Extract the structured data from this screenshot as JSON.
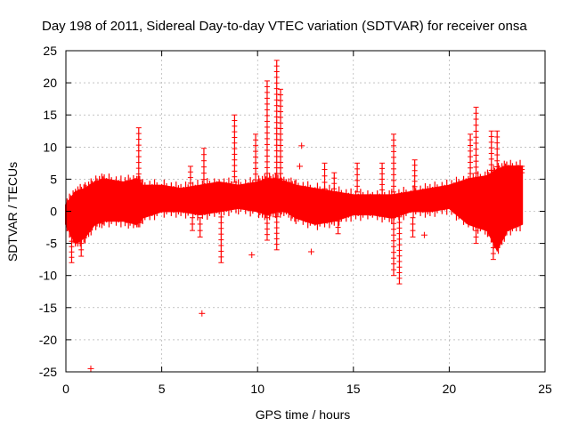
{
  "chart_data": {
    "type": "scatter",
    "title": "Day 198 of 2011, Sidereal Day-to-day VTEC variation (SDTVAR) for receiver onsa",
    "xlabel": "GPS time / hours",
    "ylabel": "SDTVAR / TECUs",
    "xlim": [
      0,
      25
    ],
    "ylim": [
      -25,
      25
    ],
    "x_ticks": [
      0,
      5,
      10,
      15,
      20,
      25
    ],
    "y_ticks": [
      -25,
      -20,
      -15,
      -10,
      -5,
      0,
      5,
      10,
      15,
      20,
      25
    ],
    "grid": true,
    "marker": "+",
    "color": "#ff0000",
    "series": [
      {
        "name": "SDTVAR",
        "band": {
          "x": [
            0.0,
            0.5,
            1.0,
            1.5,
            2.0,
            3.0,
            3.7,
            4.0,
            5.0,
            6.0,
            7.0,
            8.0,
            9.0,
            10.0,
            10.5,
            11.0,
            11.5,
            12.0,
            13.0,
            14.0,
            15.0,
            16.0,
            17.0,
            18.0,
            19.0,
            20.0,
            21.0,
            22.0,
            22.5,
            23.0,
            23.8
          ],
          "upper": [
            1.0,
            3.0,
            3.5,
            4.5,
            5.0,
            4.5,
            5.0,
            4.0,
            4.0,
            3.5,
            4.0,
            4.5,
            4.0,
            4.5,
            5.0,
            5.0,
            4.5,
            4.0,
            3.5,
            3.0,
            2.5,
            2.5,
            2.5,
            3.0,
            3.5,
            4.0,
            5.0,
            5.5,
            6.5,
            7.0,
            7.0
          ],
          "lower": [
            -2.0,
            -5.0,
            -4.0,
            -2.0,
            -1.5,
            -1.5,
            -2.0,
            -1.0,
            0.0,
            0.0,
            -0.5,
            0.0,
            0.5,
            0.0,
            -0.5,
            0.0,
            0.0,
            -1.0,
            -2.0,
            -1.5,
            -0.5,
            -0.5,
            -1.0,
            0.0,
            0.0,
            0.5,
            -2.0,
            -3.0,
            -6.0,
            -3.0,
            -2.0
          ]
        },
        "spikes": [
          {
            "x": 0.3,
            "from": -3,
            "to": -8
          },
          {
            "x": 0.8,
            "from": -4,
            "to": -7
          },
          {
            "x": 3.8,
            "from": 4,
            "to": 13
          },
          {
            "x": 6.5,
            "from": 3.5,
            "to": 7
          },
          {
            "x": 6.6,
            "from": -1,
            "to": -3
          },
          {
            "x": 7.0,
            "from": -1,
            "to": -4
          },
          {
            "x": 7.2,
            "from": 4,
            "to": 9.8
          },
          {
            "x": 8.1,
            "from": 0,
            "to": -8
          },
          {
            "x": 8.8,
            "from": 4.5,
            "to": 15
          },
          {
            "x": 9.9,
            "from": 4,
            "to": 12
          },
          {
            "x": 10.5,
            "from": 5,
            "to": 20.3
          },
          {
            "x": 10.5,
            "from": -1,
            "to": -4.5
          },
          {
            "x": 11.0,
            "from": 5,
            "to": 23.5
          },
          {
            "x": 11.0,
            "from": 0,
            "to": -6
          },
          {
            "x": 11.2,
            "from": 5,
            "to": 19
          },
          {
            "x": 13.5,
            "from": 3.5,
            "to": 7.5
          },
          {
            "x": 14.0,
            "from": 3.5,
            "to": 6
          },
          {
            "x": 14.2,
            "from": -1.5,
            "to": -3.5
          },
          {
            "x": 15.2,
            "from": 3,
            "to": 7.5
          },
          {
            "x": 16.5,
            "from": 2.5,
            "to": 7.5
          },
          {
            "x": 17.1,
            "from": 3,
            "to": 12
          },
          {
            "x": 17.1,
            "from": -1,
            "to": -10
          },
          {
            "x": 17.4,
            "from": 0,
            "to": -11.3
          },
          {
            "x": 18.2,
            "from": 3,
            "to": 8
          },
          {
            "x": 18.1,
            "from": -1,
            "to": -4
          },
          {
            "x": 21.1,
            "from": 5,
            "to": 12
          },
          {
            "x": 21.4,
            "from": 5,
            "to": 16.2
          },
          {
            "x": 21.4,
            "from": -2,
            "to": -5
          },
          {
            "x": 22.2,
            "from": 5.5,
            "to": 12.5
          },
          {
            "x": 22.3,
            "from": -2,
            "to": -7.5
          },
          {
            "x": 22.5,
            "from": 6,
            "to": 12.5
          },
          {
            "x": 23.8,
            "from": 6,
            "to": 7
          }
        ],
        "isolated_points": [
          {
            "x": 1.3,
            "y": -24.5
          },
          {
            "x": 7.1,
            "y": -15.9
          },
          {
            "x": 9.7,
            "y": -6.8
          },
          {
            "x": 12.8,
            "y": -6.3
          },
          {
            "x": 18.7,
            "y": -3.7
          },
          {
            "x": 12.3,
            "y": 10.2
          },
          {
            "x": 12.2,
            "y": 7.0
          }
        ]
      }
    ]
  }
}
